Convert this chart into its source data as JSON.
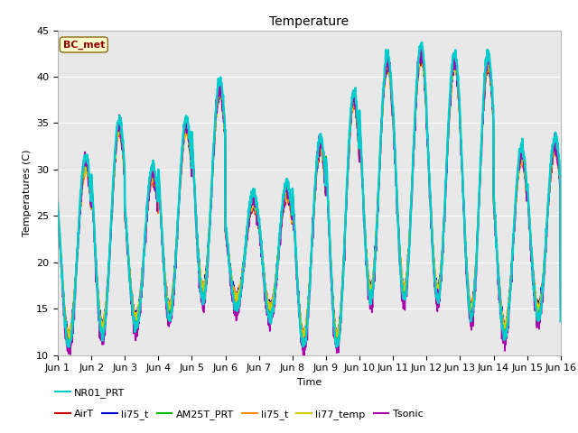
{
  "title": "Temperature",
  "xlabel": "Time",
  "ylabel": "Temperatures (C)",
  "annotation": "BC_met",
  "ylim": [
    10,
    45
  ],
  "xlim": [
    0,
    15
  ],
  "xtick_labels": [
    "Jun 1",
    "Jun 2",
    "Jun 3",
    "Jun 4",
    "Jun 5",
    "Jun 6",
    "Jun 7",
    "Jun 8",
    "Jun 9",
    "Jun 10",
    "Jun 11",
    "Jun 12",
    "Jun 13",
    "Jun 14",
    "Jun 15",
    "Jun 16"
  ],
  "ytick_values": [
    10,
    15,
    20,
    25,
    30,
    35,
    40,
    45
  ],
  "background_color": "#ffffff",
  "axes_bg_color": "#e8e8e8",
  "grid_color": "#ffffff",
  "series": [
    {
      "name": "AirT",
      "color": "#cc0000",
      "lw": 1.2
    },
    {
      "name": "li75_t",
      "color": "#0000cc",
      "lw": 1.2
    },
    {
      "name": "AM25T_PRT",
      "color": "#00bb00",
      "lw": 1.2
    },
    {
      "name": "li75_t",
      "color": "#ff8800",
      "lw": 1.2
    },
    {
      "name": "li77_temp",
      "color": "#cccc00",
      "lw": 1.2
    },
    {
      "name": "Tsonic",
      "color": "#aa00aa",
      "lw": 1.2
    },
    {
      "name": "NR01_PRT",
      "color": "#00cccc",
      "lw": 1.8
    }
  ],
  "mins_base": [
    12,
    13,
    14,
    15,
    17,
    16,
    15,
    12,
    12,
    17,
    17,
    17,
    15,
    13,
    15
  ],
  "maxs_base": [
    30,
    34,
    29,
    34,
    38,
    26,
    27,
    32,
    37,
    41,
    42,
    41,
    41,
    31,
    32
  ],
  "title_fontsize": 10,
  "axis_fontsize": 8,
  "tick_fontsize": 8,
  "legend_fontsize": 8
}
